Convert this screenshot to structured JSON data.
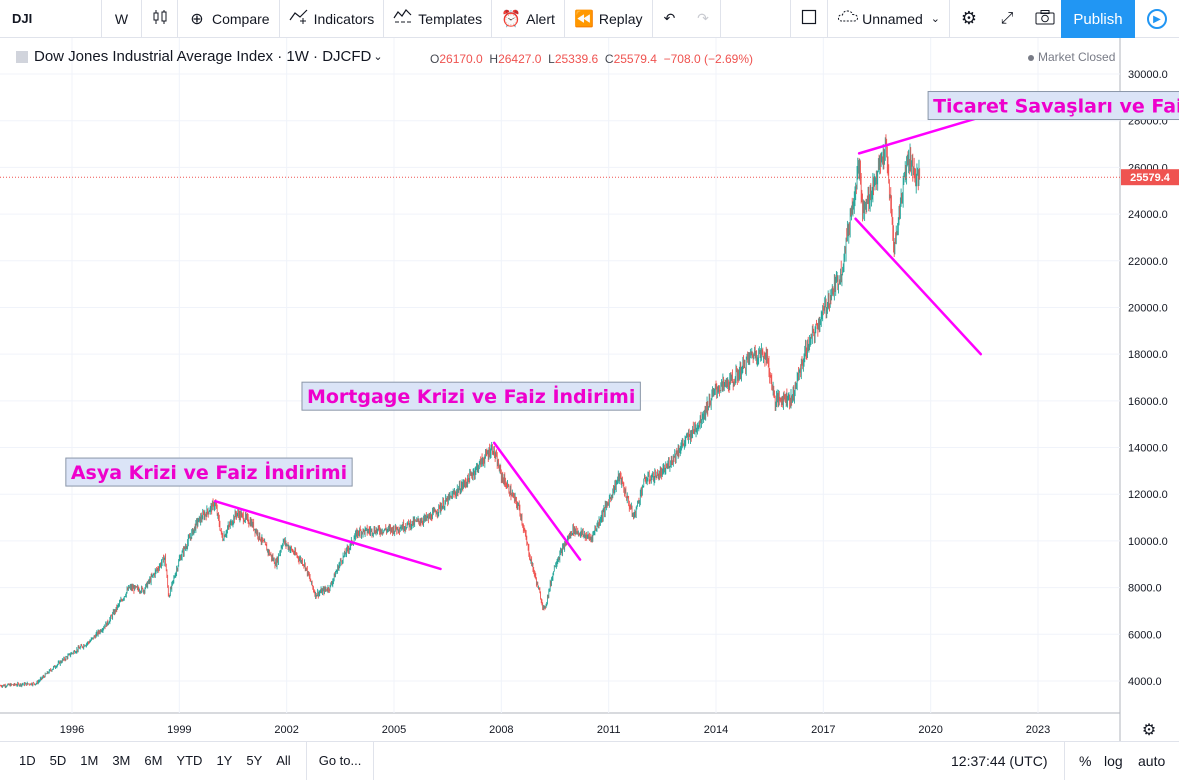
{
  "toolbar": {
    "symbol": "DJI",
    "interval": "W",
    "compare": "Compare",
    "indicators": "Indicators",
    "templates": "Templates",
    "alert": "Alert",
    "replay": "Replay",
    "layout_name": "Unnamed",
    "publish": "Publish",
    "icons": [
      "candles-icon",
      "plus-circle-icon",
      "indicators-icon",
      "templates-icon",
      "alarm-icon",
      "replay-icon",
      "undo-icon",
      "redo-icon",
      "square-icon",
      "cloud-icon",
      "gear-icon",
      "fullscreen-icon",
      "camera-icon",
      "play-icon"
    ]
  },
  "legend": {
    "title": "Dow Jones Industrial Average Index · 1W · DJCFD",
    "open_k": "O",
    "open": "26170.0",
    "high_k": "H",
    "high": "26427.0",
    "low_k": "L",
    "low": "25339.6",
    "close_k": "C",
    "close": "25579.4",
    "change": "−708.0 (−2.69%)",
    "market_status": "Market Closed"
  },
  "chart_data": {
    "type": "line",
    "series": [
      {
        "x": [
          1994.0,
          1995.0,
          1995.5,
          1996.0,
          1996.5,
          1997.0,
          1997.6,
          1998.0,
          1998.6,
          1998.7,
          1999.0,
          1999.5,
          2000.0,
          2000.2,
          2000.6,
          2001.0,
          2001.7,
          2001.9,
          2002.5,
          2002.8,
          2003.2,
          2003.5,
          2004.0,
          2005.0,
          2006.0,
          2007.0,
          2007.75,
          2008.0,
          2008.5,
          2008.8,
          2009.2,
          2009.5,
          2010.0,
          2010.5,
          2011.0,
          2011.3,
          2011.7,
          2012.0,
          2012.5,
          2013.0,
          2013.5,
          2014.0,
          2014.5,
          2015.0,
          2015.4,
          2015.65,
          2016.0,
          2016.1,
          2016.5,
          2017.0,
          2017.5,
          2018.0,
          2018.1,
          2018.3,
          2018.75,
          2018.98,
          2019.3,
          2019.4,
          2019.6,
          2019.7
        ],
        "values": [
          3800,
          3900,
          4600,
          5200,
          5700,
          6500,
          8000,
          7900,
          9300,
          7600,
          9200,
          10800,
          11600,
          10100,
          11200,
          10800,
          9000,
          10000,
          9000,
          7700,
          8000,
          9100,
          10400,
          10500,
          11000,
          12500,
          14000,
          12800,
          11400,
          9300,
          7000,
          9000,
          10500,
          10100,
          11700,
          12800,
          11000,
          12600,
          12900,
          14000,
          15000,
          16500,
          16900,
          18000,
          18000,
          16000,
          16200,
          16000,
          18100,
          19800,
          21500,
          26200,
          24000,
          24800,
          26800,
          22500,
          26000,
          26500,
          25500,
          25579
        ]
      }
    ],
    "last_price": "25579.4",
    "y_ticks": [
      "30000.0",
      "28000.0",
      "26000.0",
      "24000.0",
      "22000.0",
      "20000.0",
      "18000.0",
      "16000.0",
      "14000.0",
      "12000.0",
      "10000.0",
      "8000.0",
      "6000.0",
      "4000.0"
    ],
    "x_ticks": [
      "1996",
      "1999",
      "2002",
      "2005",
      "2008",
      "2011",
      "2014",
      "2017",
      "2020",
      "2023"
    ],
    "ylim": [
      3000,
      30500
    ],
    "xlim": [
      1994.0,
      2026.0
    ],
    "annotations": [
      {
        "text": "Asya Krizi ve Faiz İndirimi",
        "year": 1995.8,
        "value": 12650
      },
      {
        "text": "Mortgage Krizi ve Faiz İndirimi",
        "year": 2002.4,
        "value": 15900
      },
      {
        "text": "Ticaret Savaşları ve Faiz İndirimi",
        "year": 2019.9,
        "value": 28350
      }
    ],
    "trend_lines": [
      {
        "from": [
          2000.0,
          11700
        ],
        "to": [
          2006.3,
          8800
        ]
      },
      {
        "from": [
          2007.8,
          14200
        ],
        "to": [
          2010.2,
          9200
        ]
      },
      {
        "from": [
          2018.0,
          26600
        ],
        "to": [
          2021.5,
          28200
        ]
      },
      {
        "from": [
          2017.9,
          23800
        ],
        "to": [
          2021.4,
          18000
        ]
      }
    ],
    "line_color": "#ff00ff",
    "up_color": "#26a69a",
    "down_color": "#ef5350"
  },
  "bottom": {
    "ranges": [
      "1D",
      "5D",
      "1M",
      "3M",
      "6M",
      "YTD",
      "1Y",
      "5Y",
      "All"
    ],
    "goto": "Go to...",
    "time": "12:37:44 (UTC)",
    "percent": "%",
    "log": "log",
    "auto": "auto"
  }
}
